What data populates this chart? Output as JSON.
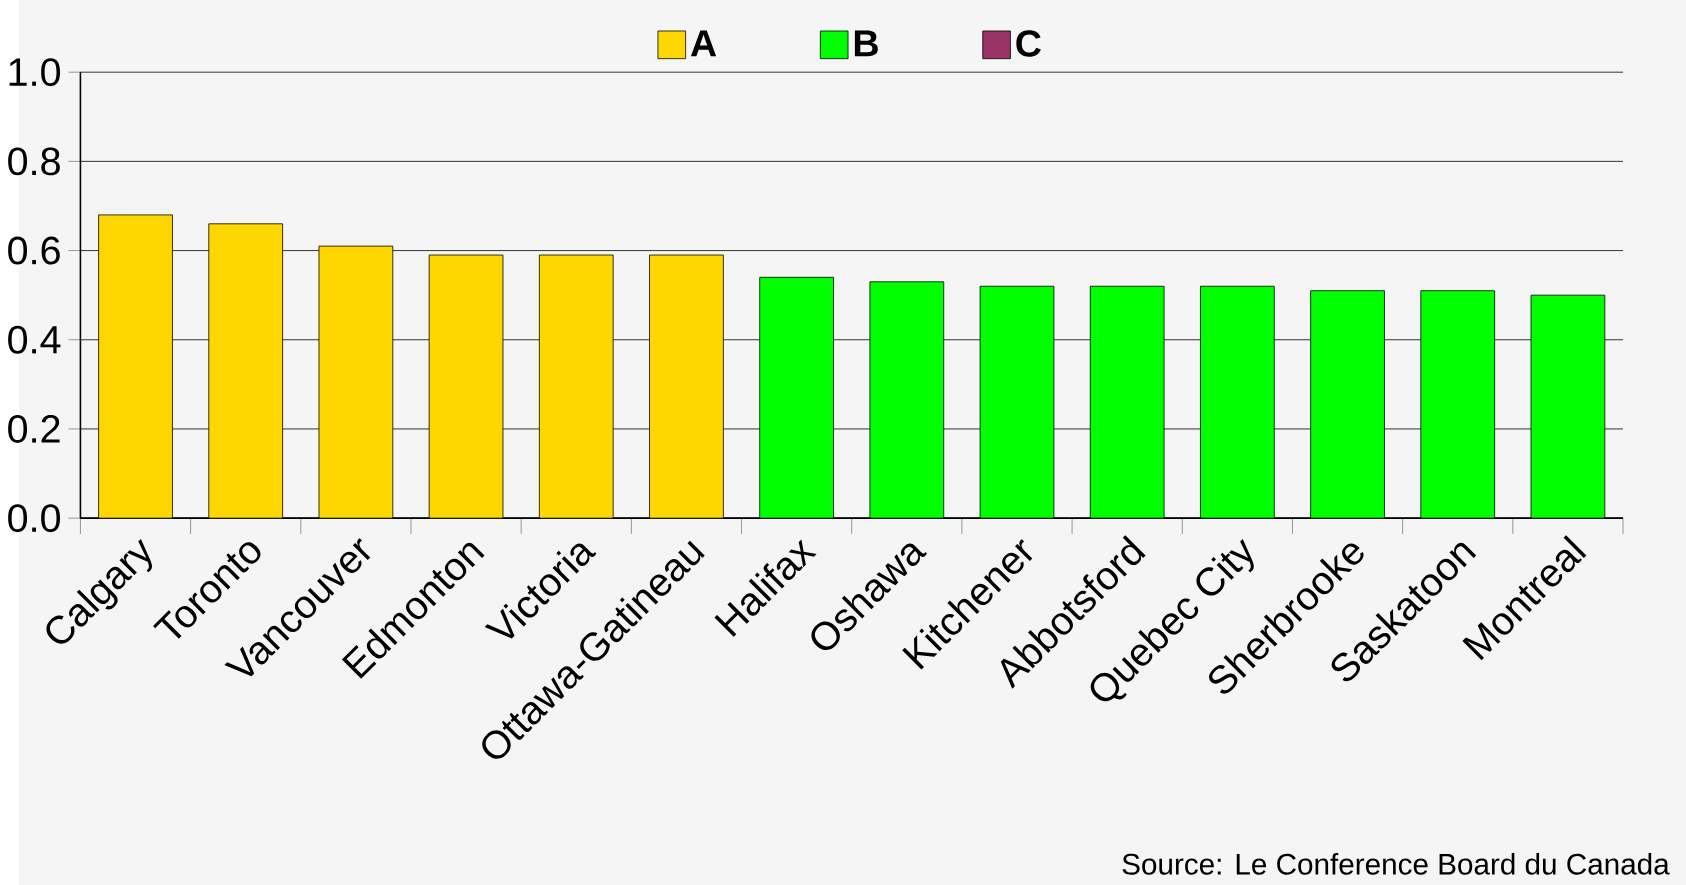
{
  "chart_data": {
    "type": "bar",
    "categories": [
      "Calgary",
      "Toronto",
      "Vancouver",
      "Edmonton",
      "Victoria",
      "Ottawa-Gatineau",
      "Halifax",
      "Oshawa",
      "Kitchener",
      "Abbotsford",
      "Quebec City",
      "Sherbrooke",
      "Saskatoon",
      "Montreal"
    ],
    "series": [
      {
        "name": "A",
        "color": "#ffd700",
        "values": [
          0.68,
          0.66,
          0.61,
          0.59,
          0.59,
          0.59,
          null,
          null,
          null,
          null,
          null,
          null,
          null,
          null
        ]
      },
      {
        "name": "B",
        "color": "#00ff00",
        "values": [
          null,
          null,
          null,
          null,
          null,
          null,
          0.54,
          0.53,
          0.52,
          0.52,
          0.52,
          0.51,
          0.51,
          0.5
        ]
      },
      {
        "name": "C",
        "color": "#993366",
        "values": [
          null,
          null,
          null,
          null,
          null,
          null,
          null,
          null,
          null,
          null,
          null,
          null,
          null,
          null
        ]
      }
    ],
    "ylim": [
      0,
      1.0
    ],
    "yticks": [
      {
        "value": 0,
        "label": "0.0"
      },
      {
        "value": 0.2,
        "label": "0.2"
      },
      {
        "value": 0.4,
        "label": "0.4"
      },
      {
        "value": 0.6,
        "label": "0.6"
      },
      {
        "value": 0.8,
        "label": "0.8"
      },
      {
        "value": 1.0,
        "label": "1.0"
      }
    ],
    "grid": "y",
    "legend": "top",
    "annotations": [
      "Source: Le Conference Board du Canada"
    ]
  }
}
